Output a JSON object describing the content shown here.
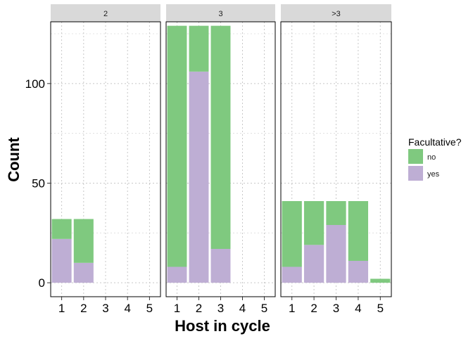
{
  "chart_data": {
    "type": "bar",
    "stacked": true,
    "faceted": true,
    "xlabel": "Host in cycle",
    "ylabel": "Count",
    "ylim": [
      -7,
      131
    ],
    "yticks": [
      0,
      50,
      100
    ],
    "categories": [
      "1",
      "2",
      "3",
      "4",
      "5"
    ],
    "grid": true,
    "legend_position": "right",
    "legend": {
      "title": "Facultative?",
      "entries": [
        {
          "key": "no",
          "label": "no",
          "color": "#7fc97f"
        },
        {
          "key": "yes",
          "label": "yes",
          "color": "#beaed4"
        }
      ]
    },
    "facets": [
      {
        "label": "2",
        "series": [
          {
            "name": "no",
            "values": [
              10,
              22,
              0,
              0,
              0
            ]
          },
          {
            "name": "yes",
            "values": [
              22,
              10,
              0,
              0,
              0
            ]
          }
        ]
      },
      {
        "label": "3",
        "series": [
          {
            "name": "no",
            "values": [
              121,
              23,
              112,
              0,
              0
            ]
          },
          {
            "name": "yes",
            "values": [
              8,
              106,
              17,
              0,
              0
            ]
          }
        ]
      },
      {
        "label": ">3",
        "series": [
          {
            "name": "no",
            "values": [
              33,
              22,
              12,
              30,
              2
            ]
          },
          {
            "name": "yes",
            "values": [
              8,
              19,
              29,
              11,
              0
            ]
          }
        ]
      }
    ]
  }
}
